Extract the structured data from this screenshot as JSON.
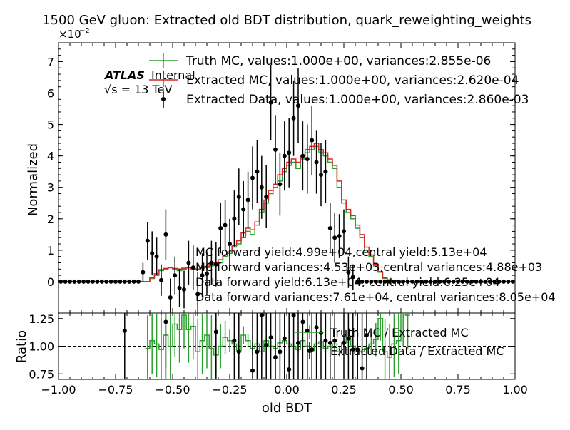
{
  "chart_data": [
    {
      "type": "line",
      "title": "1500 GeV gluon: Extracted old BDT distribution, quark_reweighting_weights",
      "ylabel": "Normalized",
      "xlim": [
        -1.0,
        1.0
      ],
      "ylim": [
        -0.01,
        0.076
      ],
      "y_multiplier_label": "×10",
      "y_multiplier_exp": "−2",
      "yticks": [
        0,
        1,
        2,
        3,
        4,
        5,
        6,
        7
      ],
      "ytick_labels": [
        "0",
        "1",
        "2",
        "3",
        "4",
        "5",
        "6",
        "7"
      ],
      "atlas_label": "ATLAS",
      "atlas_sub": "Internal",
      "energy_label": "√s = 13 TeV",
      "legend_placement": "top-right",
      "legend": [
        {
          "label": "Truth MC, values:1.000e+00, variances:2.855e-06",
          "color": "#2ca02c",
          "style": "errorbar-line"
        },
        {
          "label": "Extracted MC, values:1.000e+00, variances:2.620e-04",
          "color": "#d62728",
          "style": "errorbar-line"
        },
        {
          "label": "Extracted Data, values:1.000e+00, variances:2.860e-03",
          "color": "#000000",
          "style": "marker"
        }
      ],
      "annotations": [
        "MC forward yield:4.99e+04,central yield:5.13e+04",
        "MC forward variances:4.53e+03,central variances:4.88e+03",
        "Data forward yield:6.13e+04, central yield:6.25e+04",
        "Data forward variances:7.61e+04, central variances:8.05e+04"
      ],
      "bin_edges_start": -1.0,
      "bin_width": 0.02,
      "series": [
        {
          "name": "Truth MC",
          "color": "#2ca02c",
          "values": [
            0,
            0,
            0,
            0,
            0,
            0,
            0,
            0,
            0,
            0,
            0,
            0,
            0,
            0,
            0,
            0,
            0,
            0,
            0,
            0,
            0.001,
            0.002,
            0.0035,
            0.004,
            0.0045,
            0.004,
            0.0035,
            0.004,
            0.0045,
            0.004,
            0.0038,
            0.0042,
            0.0045,
            0.005,
            0.0055,
            0.006,
            0.008,
            0.009,
            0.011,
            0.012,
            0.014,
            0.016,
            0.015,
            0.018,
            0.022,
            0.025,
            0.028,
            0.03,
            0.032,
            0.035,
            0.037,
            0.038,
            0.036,
            0.039,
            0.041,
            0.042,
            0.043,
            0.041,
            0.04,
            0.038,
            0.036,
            0.03,
            0.025,
            0.022,
            0.02,
            0.017,
            0.014,
            0.01,
            0.008,
            0.005,
            0.003,
            0.001,
            0.0005,
            0,
            0,
            0,
            0,
            0,
            0,
            0,
            0,
            0,
            0,
            0,
            0,
            0,
            0,
            0,
            0,
            0,
            0,
            0,
            0,
            0,
            0,
            0,
            0,
            0,
            0,
            0
          ]
        },
        {
          "name": "Extracted MC",
          "color": "#d62728",
          "values": [
            0,
            0,
            0,
            0,
            0,
            0,
            0,
            0,
            0,
            0,
            0,
            0,
            0,
            0,
            0,
            0,
            0,
            0,
            0,
            0,
            0.0012,
            0.0025,
            0.0038,
            0.0042,
            0.0044,
            0.0042,
            0.004,
            0.0043,
            0.0044,
            0.0042,
            0.004,
            0.0044,
            0.0048,
            0.0055,
            0.006,
            0.007,
            0.0085,
            0.0095,
            0.0115,
            0.013,
            0.0155,
            0.017,
            0.0165,
            0.019,
            0.023,
            0.026,
            0.029,
            0.031,
            0.034,
            0.036,
            0.038,
            0.039,
            0.038,
            0.04,
            0.042,
            0.043,
            0.044,
            0.042,
            0.041,
            0.039,
            0.037,
            0.032,
            0.026,
            0.023,
            0.021,
            0.018,
            0.015,
            0.011,
            0.0085,
            0.0055,
            0.0032,
            0.0012,
            0.0006,
            0,
            0,
            0,
            0,
            0,
            0,
            0,
            0,
            0,
            0,
            0,
            0,
            0,
            0,
            0,
            0,
            0,
            0,
            0,
            0,
            0,
            0,
            0,
            0,
            0,
            0,
            0
          ]
        },
        {
          "name": "Extracted Data",
          "color": "#000000",
          "x": [
            -0.99,
            -0.97,
            -0.95,
            -0.93,
            -0.91,
            -0.89,
            -0.87,
            -0.85,
            -0.83,
            -0.81,
            -0.79,
            -0.77,
            -0.75,
            -0.73,
            -0.71,
            -0.69,
            -0.67,
            -0.65,
            -0.63,
            -0.61,
            -0.59,
            -0.57,
            -0.55,
            -0.53,
            -0.51,
            -0.49,
            -0.47,
            -0.45,
            -0.43,
            -0.41,
            -0.39,
            -0.37,
            -0.35,
            -0.33,
            -0.31,
            -0.29,
            -0.27,
            -0.25,
            -0.23,
            -0.21,
            -0.19,
            -0.17,
            -0.15,
            -0.13,
            -0.11,
            -0.09,
            -0.07,
            -0.05,
            -0.03,
            -0.01,
            0.01,
            0.03,
            0.05,
            0.07,
            0.09,
            0.11,
            0.13,
            0.15,
            0.17,
            0.19,
            0.21,
            0.23,
            0.25,
            0.27,
            0.29,
            0.31,
            0.33,
            0.35,
            0.37,
            0.39,
            0.41,
            0.43,
            0.45,
            0.47,
            0.49,
            0.51,
            0.53,
            0.55,
            0.57,
            0.59,
            0.61,
            0.63,
            0.65,
            0.67,
            0.69,
            0.71,
            0.73,
            0.75,
            0.77,
            0.79,
            0.81,
            0.83,
            0.85,
            0.87,
            0.89,
            0.91,
            0.93,
            0.95,
            0.97,
            0.99
          ],
          "y": [
            0,
            0,
            0,
            0,
            0,
            0,
            0,
            0,
            0,
            0,
            0,
            0,
            0,
            0,
            0,
            0,
            0,
            0,
            0.003,
            0.013,
            0.009,
            0.008,
            0.0005,
            0.015,
            -0.005,
            0.002,
            -0.002,
            -0.0025,
            0.006,
            0.0045,
            -0.004,
            0.002,
            0.0025,
            0.006,
            0.0055,
            0.017,
            0.018,
            0.012,
            0.02,
            0.027,
            0.023,
            0.026,
            0.033,
            0.035,
            0.03,
            0.027,
            0.057,
            0.042,
            0.031,
            0.04,
            0.041,
            0.052,
            0.056,
            0.04,
            0.039,
            0.045,
            0.038,
            0.034,
            0.035,
            0.017,
            0.014,
            0.0145,
            0.016,
            0.003,
            0.0015,
            0,
            0,
            0,
            0,
            0,
            0,
            0,
            0,
            0,
            0,
            0,
            0,
            0,
            0,
            0,
            0,
            0,
            0,
            0,
            0,
            0,
            0,
            0,
            0,
            0,
            0,
            0,
            0,
            0,
            0,
            0,
            0,
            0,
            0,
            0
          ],
          "yerr": [
            0,
            0,
            0,
            0,
            0,
            0,
            0,
            0,
            0,
            0,
            0,
            0,
            0,
            0,
            0,
            0,
            0,
            0,
            0.003,
            0.006,
            0.007,
            0.006,
            0.005,
            0.008,
            0.006,
            0.006,
            0.006,
            0.006,
            0.007,
            0.007,
            0.007,
            0.007,
            0.007,
            0.007,
            0.007,
            0.008,
            0.008,
            0.008,
            0.009,
            0.009,
            0.009,
            0.009,
            0.01,
            0.01,
            0.01,
            0.01,
            0.012,
            0.011,
            0.01,
            0.011,
            0.011,
            0.012,
            0.012,
            0.011,
            0.011,
            0.011,
            0.01,
            0.01,
            0.01,
            0.008,
            0.008,
            0.007,
            0.007,
            0.005,
            0.004,
            0,
            0,
            0,
            0,
            0,
            0,
            0,
            0,
            0,
            0,
            0,
            0,
            0,
            0,
            0,
            0,
            0,
            0,
            0,
            0,
            0,
            0,
            0,
            0,
            0,
            0,
            0,
            0,
            0,
            0,
            0,
            0,
            0,
            0,
            0
          ]
        }
      ]
    },
    {
      "type": "line",
      "ylabel": "Ratio",
      "xlabel": "old BDT",
      "xlim": [
        -1.0,
        1.0
      ],
      "ylim": [
        0.7,
        1.3
      ],
      "xticks": [
        -1.0,
        -0.75,
        -0.5,
        -0.25,
        0.0,
        0.25,
        0.5,
        0.75,
        1.0
      ],
      "xtick_labels": [
        "−1.00",
        "−0.75",
        "−0.50",
        "−0.25",
        "0.00",
        "0.25",
        "0.50",
        "0.75",
        "1.00"
      ],
      "yticks": [
        0.75,
        1.0,
        1.25
      ],
      "ytick_labels": [
        "0.75",
        "1.00",
        "1.25"
      ],
      "reference_line": 1.0,
      "legend_placement": "right",
      "legend": [
        {
          "label": "Truth MC / Extracted MC",
          "color": "#2ca02c",
          "style": "errorbar-line"
        },
        {
          "label": "Extracted Data / Extracted MC",
          "color": "#000000",
          "style": "marker"
        }
      ],
      "series": [
        {
          "name": "Truth MC / Extracted MC",
          "color": "#2ca02c",
          "x_start": -0.62,
          "bin_width": 0.02,
          "values": [
            0.98,
            1.05,
            1.02,
            0.97,
            1.1,
            1.0,
            1.2,
            1.15,
            1.28,
            1.15,
            1.18,
            0.95,
            1.05,
            1.1,
            0.98,
            0.92,
            1.0,
            1.08,
            1.05,
            1.02,
            0.96,
            1.1,
            1.05,
            0.98,
            1.02,
            0.95,
            1.05,
            1.0,
            0.98,
            1.03,
            1.05,
            1.02,
            1.0,
            0.97,
            1.05,
            1.0,
            0.96,
            1.02,
            1.04,
            0.98,
            1.0,
            1.02,
            0.95,
            1.03,
            1.08,
            1.0,
            0.97,
            0.95,
            0.98,
            1.02,
            1.06,
            1.25,
            0.95,
            0.9,
            1.02,
            1.05,
            1.3,
            1.28
          ],
          "errors": [
            0.3,
            0.3,
            0.3,
            0.3,
            0.3,
            0.3,
            0.3,
            0.3,
            0.3,
            0.3,
            0.3,
            0.3,
            0.3,
            0.3,
            0.3,
            0.2,
            0.2,
            0.15,
            0.1,
            0.1,
            0.08,
            0.08,
            0.06,
            0.06,
            0.05,
            0.05,
            0.04,
            0.04,
            0.04,
            0.04,
            0.04,
            0.03,
            0.03,
            0.03,
            0.03,
            0.03,
            0.03,
            0.03,
            0.03,
            0.03,
            0.03,
            0.04,
            0.04,
            0.04,
            0.05,
            0.05,
            0.06,
            0.06,
            0.08,
            0.1,
            0.15,
            0.2,
            0.3,
            0.3,
            0.3,
            0.3,
            0.3,
            0.3
          ]
        },
        {
          "name": "Extracted Data / Extracted MC",
          "color": "#000000",
          "x": [
            -0.71,
            -0.53,
            -0.31,
            -0.23,
            -0.21,
            -0.15,
            -0.13,
            -0.11,
            -0.09,
            -0.07,
            -0.05,
            -0.03,
            -0.01,
            0.01,
            0.03,
            0.05,
            0.07,
            0.09,
            0.11,
            0.13,
            0.15,
            0.17,
            0.19,
            0.21,
            0.25,
            0.27,
            0.29,
            0.31,
            0.33,
            0.35
          ],
          "y": [
            1.14,
            1.22,
            1.13,
            1.05,
            0.95,
            0.78,
            0.95,
            1.28,
            1.01,
            1.08,
            0.9,
            0.95,
            1.07,
            0.79,
            1.28,
            1.03,
            1.22,
            1.14,
            0.97,
            1.17,
            1.12,
            1.05,
            1.03,
            1.05,
            1.03,
            1.07,
            0.97,
            0.97,
            0.8,
            1.1
          ]
        }
      ]
    }
  ]
}
